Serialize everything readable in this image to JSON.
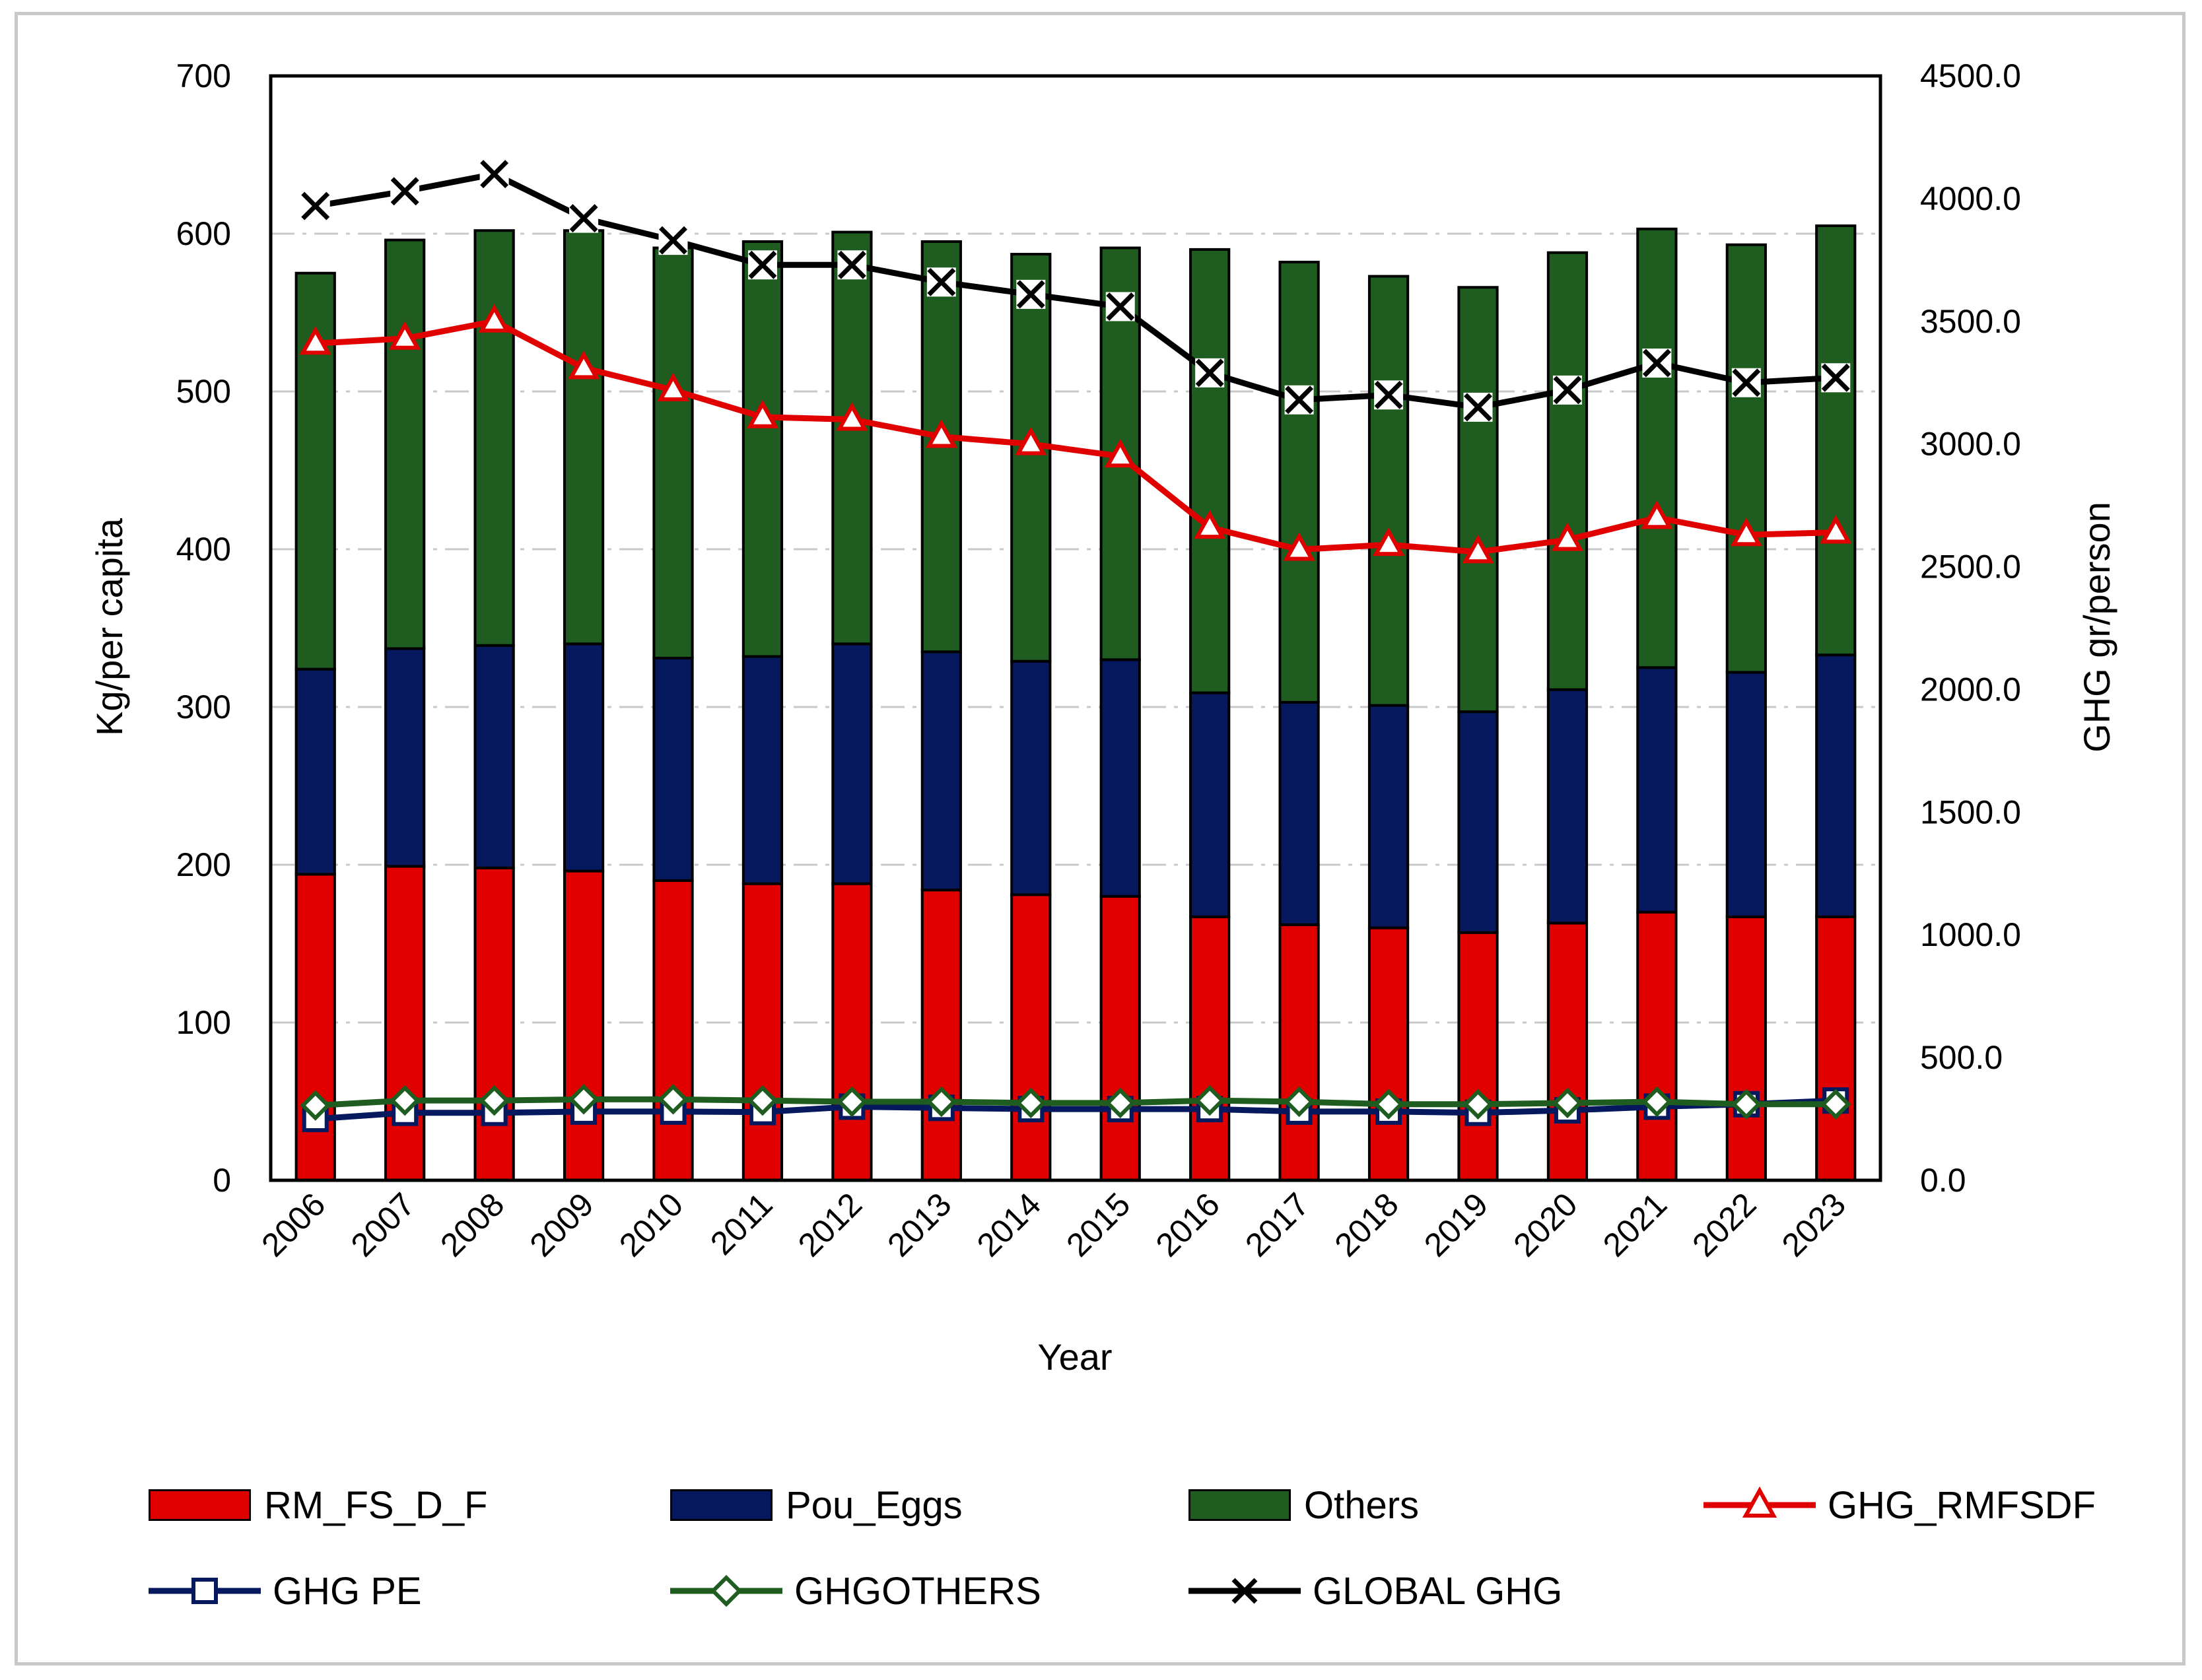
{
  "chart_data": {
    "type": "bar",
    "stacked": true,
    "title": "",
    "xlabel": "Year",
    "ylabel": "Kg/per capita",
    "y2label": "GHG gr/person",
    "ylim": [
      0,
      700
    ],
    "y2lim": [
      0,
      4500
    ],
    "yticks": [
      "0",
      "100",
      "200",
      "300",
      "400",
      "500",
      "600",
      "700"
    ],
    "y2ticks": [
      "0.0",
      "500.0",
      "1000.0",
      "1500.0",
      "2000.0",
      "2500.0",
      "3000.0",
      "3500.0",
      "4000.0",
      "4500.0"
    ],
    "categories": [
      "2006",
      "2007",
      "2008",
      "2009",
      "2010",
      "2011",
      "2012",
      "2013",
      "2014",
      "2015",
      "2016",
      "2017",
      "2018",
      "2019",
      "2020",
      "2021",
      "2022",
      "2023"
    ],
    "bar_series": [
      {
        "name": "RM_FS_D_F",
        "color": "#e00000",
        "values": [
          194,
          199,
          198,
          196,
          190,
          188,
          188,
          184,
          181,
          180,
          167,
          162,
          160,
          157,
          163,
          170,
          167,
          167
        ]
      },
      {
        "name": "Pou_Eggs",
        "color": "#06185e",
        "values": [
          130,
          138,
          141,
          144,
          141,
          144,
          152,
          151,
          148,
          150,
          142,
          141,
          141,
          140,
          148,
          155,
          155,
          166
        ]
      },
      {
        "name": "Others",
        "color": "#1f5c1f",
        "values": [
          251,
          259,
          263,
          262,
          260,
          263,
          261,
          260,
          258,
          261,
          281,
          279,
          272,
          269,
          277,
          278,
          271,
          272
        ]
      }
    ],
    "line_series": [
      {
        "name": "GHG_RMFSDF",
        "color": "#e00000",
        "marker": "triangle",
        "values": [
          3410,
          3430,
          3500,
          3310,
          3220,
          3110,
          3100,
          3030,
          3000,
          2950,
          2660,
          2570,
          2590,
          2560,
          2610,
          2700,
          2630,
          2640
        ]
      },
      {
        "name": "GHG PE",
        "color": "#06185e",
        "marker": "square",
        "values": [
          250,
          275,
          275,
          280,
          280,
          278,
          300,
          295,
          290,
          290,
          290,
          280,
          280,
          275,
          285,
          300,
          310,
          325
        ]
      },
      {
        "name": "GHGOTHERS",
        "color": "#1f5c1f",
        "marker": "diamond",
        "values": [
          305,
          325,
          325,
          330,
          330,
          325,
          320,
          320,
          315,
          315,
          325,
          320,
          310,
          310,
          315,
          320,
          310,
          310
        ]
      },
      {
        "name": "GLOBAL GHG",
        "color": "#000000",
        "marker": "x",
        "values": [
          3970,
          4030,
          4100,
          3920,
          3830,
          3730,
          3730,
          3660,
          3610,
          3560,
          3290,
          3180,
          3200,
          3150,
          3220,
          3330,
          3250,
          3270
        ]
      }
    ],
    "legend_position": "bottom",
    "grid": "horizontal dash-dot"
  }
}
